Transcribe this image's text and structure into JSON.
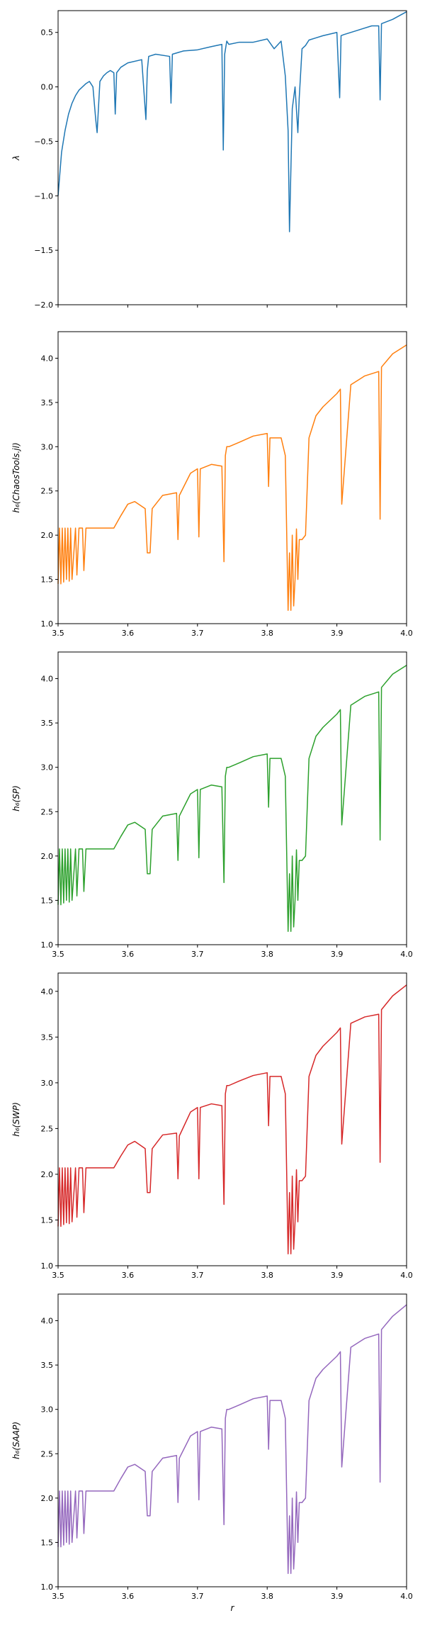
{
  "chart_data": [
    {
      "type": "line",
      "ylabel": "λ",
      "xlabel": "",
      "xlim": [
        3.5,
        4.0
      ],
      "ylim": [
        -2.0,
        0.7
      ],
      "yticks": [
        0.5,
        0.0,
        -0.5,
        -1.0,
        -1.5,
        -2.0
      ],
      "ytick_labels": [
        "0.5",
        "0.0",
        "−0.5",
        "−1.0",
        "−1.5",
        "−2.0"
      ],
      "xticks": [
        3.5,
        3.6,
        3.7,
        3.8,
        3.9,
        4.0
      ],
      "xtick_labels": [],
      "color": "#1f77b4",
      "series": [
        {
          "x": [
            3.5,
            3.505,
            3.51,
            3.515,
            3.52,
            3.525,
            3.53,
            3.535,
            3.54,
            3.545,
            3.55,
            3.554,
            3.556,
            3.56,
            3.565,
            3.57,
            3.575,
            3.58,
            3.582,
            3.584,
            3.59,
            3.6,
            3.62,
            3.626,
            3.628,
            3.63,
            3.64,
            3.66,
            3.662,
            3.664,
            3.68,
            3.7,
            3.72,
            3.735,
            3.737,
            3.739,
            3.742,
            3.745,
            3.76,
            3.78,
            3.8,
            3.81,
            3.82,
            3.826,
            3.83,
            3.832,
            3.836,
            3.84,
            3.844,
            3.846,
            3.85,
            3.855,
            3.86,
            3.87,
            3.88,
            3.9,
            3.904,
            3.906,
            3.91,
            3.93,
            3.95,
            3.96,
            3.962,
            3.964,
            3.98,
            4.0
          ],
          "y": [
            -1.0,
            -0.6,
            -0.4,
            -0.25,
            -0.15,
            -0.08,
            -0.03,
            0.0,
            0.03,
            0.05,
            0.0,
            -0.3,
            -0.42,
            0.05,
            0.1,
            0.13,
            0.15,
            0.13,
            -0.25,
            0.13,
            0.18,
            0.22,
            0.25,
            -0.3,
            0.15,
            0.28,
            0.3,
            0.28,
            -0.15,
            0.3,
            0.33,
            0.34,
            0.37,
            0.39,
            -0.58,
            0.3,
            0.42,
            0.39,
            0.41,
            0.41,
            0.44,
            0.35,
            0.42,
            0.1,
            -0.4,
            -1.33,
            -0.2,
            0.0,
            -0.42,
            -0.1,
            0.35,
            0.38,
            0.43,
            0.45,
            0.47,
            0.5,
            -0.1,
            0.47,
            0.48,
            0.52,
            0.56,
            0.56,
            -0.12,
            0.58,
            0.62,
            0.69
          ]
        }
      ]
    },
    {
      "type": "line",
      "ylabel": "h₆(ChaosTools.jl)",
      "xlabel": "",
      "xlim": [
        3.5,
        4.0
      ],
      "ylim": [
        1.0,
        4.3
      ],
      "yticks": [
        1.0,
        1.5,
        2.0,
        2.5,
        3.0,
        3.5,
        4.0
      ],
      "ytick_labels": [
        "1.0",
        "1.5",
        "2.0",
        "2.5",
        "3.0",
        "3.5",
        "4.0"
      ],
      "xticks": [
        3.5,
        3.6,
        3.7,
        3.8,
        3.9,
        4.0
      ],
      "xtick_labels": [
        "3.5",
        "3.6",
        "3.7",
        "3.8",
        "3.9",
        "4.0"
      ],
      "color": "#ff7f0e",
      "series": [
        {
          "x": [
            3.5,
            3.502,
            3.504,
            3.506,
            3.508,
            3.51,
            3.512,
            3.514,
            3.516,
            3.518,
            3.52,
            3.525,
            3.527,
            3.53,
            3.535,
            3.537,
            3.54,
            3.58,
            3.59,
            3.6,
            3.61,
            3.625,
            3.628,
            3.632,
            3.635,
            3.65,
            3.67,
            3.672,
            3.674,
            3.69,
            3.7,
            3.702,
            3.704,
            3.72,
            3.735,
            3.738,
            3.74,
            3.742,
            3.745,
            3.76,
            3.78,
            3.8,
            3.802,
            3.804,
            3.82,
            3.826,
            3.83,
            3.832,
            3.834,
            3.836,
            3.838,
            3.84,
            3.842,
            3.844,
            3.846,
            3.85,
            3.855,
            3.86,
            3.87,
            3.88,
            3.9,
            3.905,
            3.907,
            3.92,
            3.94,
            3.96,
            3.962,
            3.964,
            3.98,
            4.0
          ],
          "y": [
            1.45,
            2.08,
            1.45,
            2.08,
            1.47,
            2.08,
            1.5,
            2.08,
            1.48,
            2.08,
            1.5,
            2.08,
            1.55,
            2.08,
            2.08,
            1.6,
            2.08,
            2.08,
            2.22,
            2.35,
            2.38,
            2.3,
            1.8,
            1.8,
            2.3,
            2.45,
            2.48,
            1.95,
            2.45,
            2.7,
            2.75,
            1.98,
            2.75,
            2.8,
            2.78,
            1.7,
            2.9,
            3.0,
            3.0,
            3.05,
            3.12,
            3.15,
            2.55,
            3.1,
            3.1,
            2.9,
            1.15,
            1.8,
            1.15,
            2.0,
            1.2,
            1.5,
            2.07,
            1.5,
            1.95,
            1.95,
            2.0,
            3.1,
            3.35,
            3.45,
            3.6,
            3.65,
            2.35,
            3.7,
            3.8,
            3.85,
            2.18,
            3.9,
            4.05,
            4.15
          ]
        }
      ]
    },
    {
      "type": "line",
      "ylabel": "h₆(SP)",
      "xlabel": "",
      "xlim": [
        3.5,
        4.0
      ],
      "ylim": [
        1.0,
        4.3
      ],
      "yticks": [
        1.0,
        1.5,
        2.0,
        2.5,
        3.0,
        3.5,
        4.0
      ],
      "ytick_labels": [
        "1.0",
        "1.5",
        "2.0",
        "2.5",
        "3.0",
        "3.5",
        "4.0"
      ],
      "xticks": [
        3.5,
        3.6,
        3.7,
        3.8,
        3.9,
        4.0
      ],
      "xtick_labels": [
        "3.5",
        "3.6",
        "3.7",
        "3.8",
        "3.9",
        "4.0"
      ],
      "color": "#2ca02c",
      "series": [
        {
          "x": [
            3.5,
            3.502,
            3.504,
            3.506,
            3.508,
            3.51,
            3.512,
            3.514,
            3.516,
            3.518,
            3.52,
            3.525,
            3.527,
            3.53,
            3.535,
            3.537,
            3.54,
            3.58,
            3.59,
            3.6,
            3.61,
            3.625,
            3.628,
            3.632,
            3.635,
            3.65,
            3.67,
            3.672,
            3.674,
            3.69,
            3.7,
            3.702,
            3.704,
            3.72,
            3.735,
            3.738,
            3.74,
            3.742,
            3.745,
            3.76,
            3.78,
            3.8,
            3.802,
            3.804,
            3.82,
            3.826,
            3.83,
            3.832,
            3.834,
            3.836,
            3.838,
            3.84,
            3.842,
            3.844,
            3.846,
            3.85,
            3.855,
            3.86,
            3.87,
            3.88,
            3.9,
            3.905,
            3.907,
            3.92,
            3.94,
            3.96,
            3.962,
            3.964,
            3.98,
            4.0
          ],
          "y": [
            1.45,
            2.08,
            1.45,
            2.08,
            1.47,
            2.08,
            1.5,
            2.08,
            1.48,
            2.08,
            1.5,
            2.08,
            1.55,
            2.08,
            2.08,
            1.6,
            2.08,
            2.08,
            2.22,
            2.35,
            2.38,
            2.3,
            1.8,
            1.8,
            2.3,
            2.45,
            2.48,
            1.95,
            2.45,
            2.7,
            2.75,
            1.98,
            2.75,
            2.8,
            2.78,
            1.7,
            2.9,
            3.0,
            3.0,
            3.05,
            3.12,
            3.15,
            2.55,
            3.1,
            3.1,
            2.9,
            1.15,
            1.8,
            1.15,
            2.0,
            1.2,
            1.5,
            2.07,
            1.5,
            1.95,
            1.95,
            2.0,
            3.1,
            3.35,
            3.45,
            3.6,
            3.65,
            2.35,
            3.7,
            3.8,
            3.85,
            2.18,
            3.9,
            4.05,
            4.15
          ]
        }
      ]
    },
    {
      "type": "line",
      "ylabel": "h₆(SWP)",
      "xlabel": "",
      "xlim": [
        3.5,
        4.0
      ],
      "ylim": [
        1.0,
        4.2
      ],
      "yticks": [
        1.0,
        1.5,
        2.0,
        2.5,
        3.0,
        3.5,
        4.0
      ],
      "ytick_labels": [
        "1.0",
        "1.5",
        "2.0",
        "2.5",
        "3.0",
        "3.5",
        "4.0"
      ],
      "xticks": [
        3.5,
        3.6,
        3.7,
        3.8,
        3.9,
        4.0
      ],
      "xtick_labels": [
        "3.5",
        "3.6",
        "3.7",
        "3.8",
        "3.9",
        "4.0"
      ],
      "color": "#d62728",
      "series": [
        {
          "x": [
            3.5,
            3.502,
            3.504,
            3.506,
            3.508,
            3.51,
            3.512,
            3.514,
            3.516,
            3.518,
            3.52,
            3.525,
            3.527,
            3.53,
            3.535,
            3.537,
            3.54,
            3.58,
            3.59,
            3.6,
            3.61,
            3.625,
            3.628,
            3.632,
            3.635,
            3.65,
            3.67,
            3.672,
            3.674,
            3.69,
            3.7,
            3.702,
            3.704,
            3.72,
            3.735,
            3.738,
            3.74,
            3.742,
            3.745,
            3.76,
            3.78,
            3.8,
            3.802,
            3.804,
            3.82,
            3.826,
            3.83,
            3.832,
            3.834,
            3.836,
            3.838,
            3.84,
            3.842,
            3.844,
            3.846,
            3.85,
            3.855,
            3.86,
            3.87,
            3.88,
            3.9,
            3.905,
            3.907,
            3.92,
            3.94,
            3.96,
            3.962,
            3.964,
            3.98,
            4.0
          ],
          "y": [
            1.43,
            2.07,
            1.43,
            2.07,
            1.45,
            2.07,
            1.47,
            2.07,
            1.46,
            2.07,
            1.48,
            2.07,
            1.53,
            2.07,
            2.07,
            1.58,
            2.07,
            2.07,
            2.2,
            2.32,
            2.36,
            2.28,
            1.8,
            1.8,
            2.28,
            2.43,
            2.45,
            1.95,
            2.42,
            2.68,
            2.73,
            1.95,
            2.73,
            2.77,
            2.75,
            1.67,
            2.88,
            2.97,
            2.97,
            3.02,
            3.08,
            3.11,
            2.53,
            3.07,
            3.07,
            2.88,
            1.13,
            1.8,
            1.13,
            1.98,
            1.18,
            1.48,
            2.05,
            1.48,
            1.93,
            1.93,
            1.98,
            3.07,
            3.3,
            3.4,
            3.55,
            3.6,
            2.33,
            3.65,
            3.72,
            3.75,
            2.13,
            3.8,
            3.95,
            4.07
          ]
        }
      ]
    },
    {
      "type": "line",
      "ylabel": "h₆(SAAP)",
      "xlabel": "r",
      "xlim": [
        3.5,
        4.0
      ],
      "ylim": [
        1.0,
        4.3
      ],
      "yticks": [
        1.0,
        1.5,
        2.0,
        2.5,
        3.0,
        3.5,
        4.0
      ],
      "ytick_labels": [
        "1.0",
        "1.5",
        "2.0",
        "2.5",
        "3.0",
        "3.5",
        "4.0"
      ],
      "xticks": [
        3.5,
        3.6,
        3.7,
        3.8,
        3.9,
        4.0
      ],
      "xtick_labels": [
        "3.5",
        "3.6",
        "3.7",
        "3.8",
        "3.9",
        "4.0"
      ],
      "color": "#9467bd",
      "series": [
        {
          "x": [
            3.5,
            3.502,
            3.504,
            3.506,
            3.508,
            3.51,
            3.512,
            3.514,
            3.516,
            3.518,
            3.52,
            3.525,
            3.527,
            3.53,
            3.535,
            3.537,
            3.54,
            3.58,
            3.59,
            3.6,
            3.61,
            3.625,
            3.628,
            3.632,
            3.635,
            3.65,
            3.67,
            3.672,
            3.674,
            3.69,
            3.7,
            3.702,
            3.704,
            3.72,
            3.735,
            3.738,
            3.74,
            3.742,
            3.745,
            3.76,
            3.78,
            3.8,
            3.802,
            3.804,
            3.82,
            3.826,
            3.83,
            3.832,
            3.834,
            3.836,
            3.838,
            3.84,
            3.842,
            3.844,
            3.846,
            3.85,
            3.855,
            3.86,
            3.87,
            3.88,
            3.9,
            3.905,
            3.907,
            3.92,
            3.94,
            3.96,
            3.962,
            3.964,
            3.98,
            4.0
          ],
          "y": [
            1.45,
            2.08,
            1.45,
            2.08,
            1.47,
            2.08,
            1.5,
            2.08,
            1.48,
            2.08,
            1.5,
            2.08,
            1.55,
            2.08,
            2.08,
            1.6,
            2.08,
            2.08,
            2.22,
            2.35,
            2.38,
            2.3,
            1.8,
            1.8,
            2.3,
            2.45,
            2.48,
            1.95,
            2.45,
            2.7,
            2.75,
            1.98,
            2.75,
            2.8,
            2.78,
            1.7,
            2.9,
            3.0,
            3.0,
            3.05,
            3.12,
            3.15,
            2.55,
            3.1,
            3.1,
            2.9,
            1.15,
            1.8,
            1.15,
            2.0,
            1.2,
            1.5,
            2.07,
            1.5,
            1.95,
            1.95,
            2.0,
            3.1,
            3.35,
            3.45,
            3.6,
            3.65,
            2.35,
            3.7,
            3.8,
            3.85,
            2.18,
            3.9,
            4.05,
            4.18
          ]
        }
      ]
    }
  ]
}
